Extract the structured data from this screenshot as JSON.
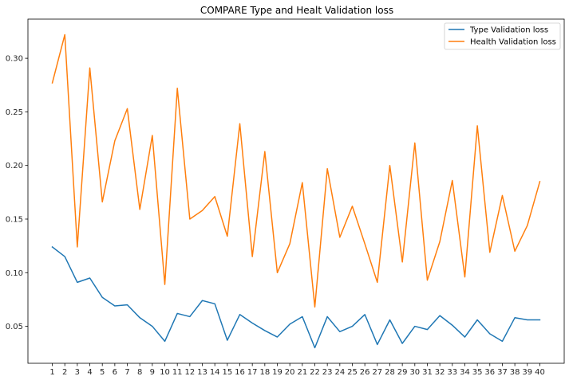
{
  "chart_data": {
    "type": "line",
    "title": "COMPARE Type and Healt Validation loss",
    "xlabel": "",
    "ylabel": "",
    "x": [
      1,
      2,
      3,
      4,
      5,
      6,
      7,
      8,
      9,
      10,
      11,
      12,
      13,
      14,
      15,
      16,
      17,
      18,
      19,
      20,
      21,
      22,
      23,
      24,
      25,
      26,
      27,
      28,
      29,
      30,
      31,
      32,
      33,
      34,
      35,
      36,
      37,
      38,
      39,
      40
    ],
    "xtick_labels": [
      "1",
      "2",
      "3",
      "4",
      "5",
      "6",
      "7",
      "8",
      "9",
      "10",
      "11",
      "12",
      "13",
      "14",
      "15",
      "16",
      "17",
      "18",
      "19",
      "20",
      "21",
      "22",
      "23",
      "24",
      "25",
      "26",
      "27",
      "28",
      "29",
      "30",
      "31",
      "32",
      "33",
      "34",
      "35",
      "36",
      "37",
      "38",
      "39",
      "40"
    ],
    "yticks": [
      0.05,
      0.1,
      0.15,
      0.2,
      0.25,
      0.3
    ],
    "ytick_labels": [
      "0.05",
      "0.10",
      "0.15",
      "0.20",
      "0.25",
      "0.30"
    ],
    "xlim": [
      -0.95,
      41.95
    ],
    "ylim": [
      0.0155,
      0.3365
    ],
    "grid": false,
    "legend_position": "top-right",
    "series": [
      {
        "name": "Type Validation loss",
        "color": "#1f77b4",
        "values": [
          0.124,
          0.115,
          0.091,
          0.095,
          0.077,
          0.069,
          0.07,
          0.058,
          0.05,
          0.036,
          0.062,
          0.059,
          0.074,
          0.071,
          0.037,
          0.061,
          0.053,
          0.046,
          0.04,
          0.052,
          0.059,
          0.03,
          0.059,
          0.045,
          0.05,
          0.061,
          0.033,
          0.056,
          0.034,
          0.05,
          0.047,
          0.06,
          0.051,
          0.04,
          0.056,
          0.043,
          0.036,
          0.058,
          0.056,
          0.056
        ]
      },
      {
        "name": "Health Validation loss",
        "color": "#ff7f0e",
        "values": [
          0.277,
          0.322,
          0.124,
          0.291,
          0.166,
          0.223,
          0.253,
          0.159,
          0.228,
          0.089,
          0.272,
          0.15,
          0.158,
          0.171,
          0.134,
          0.239,
          0.115,
          0.213,
          0.1,
          0.127,
          0.184,
          0.068,
          0.197,
          0.133,
          0.162,
          0.127,
          0.091,
          0.2,
          0.11,
          0.221,
          0.093,
          0.129,
          0.186,
          0.096,
          0.237,
          0.119,
          0.172,
          0.12,
          0.144,
          0.185
        ]
      }
    ]
  }
}
